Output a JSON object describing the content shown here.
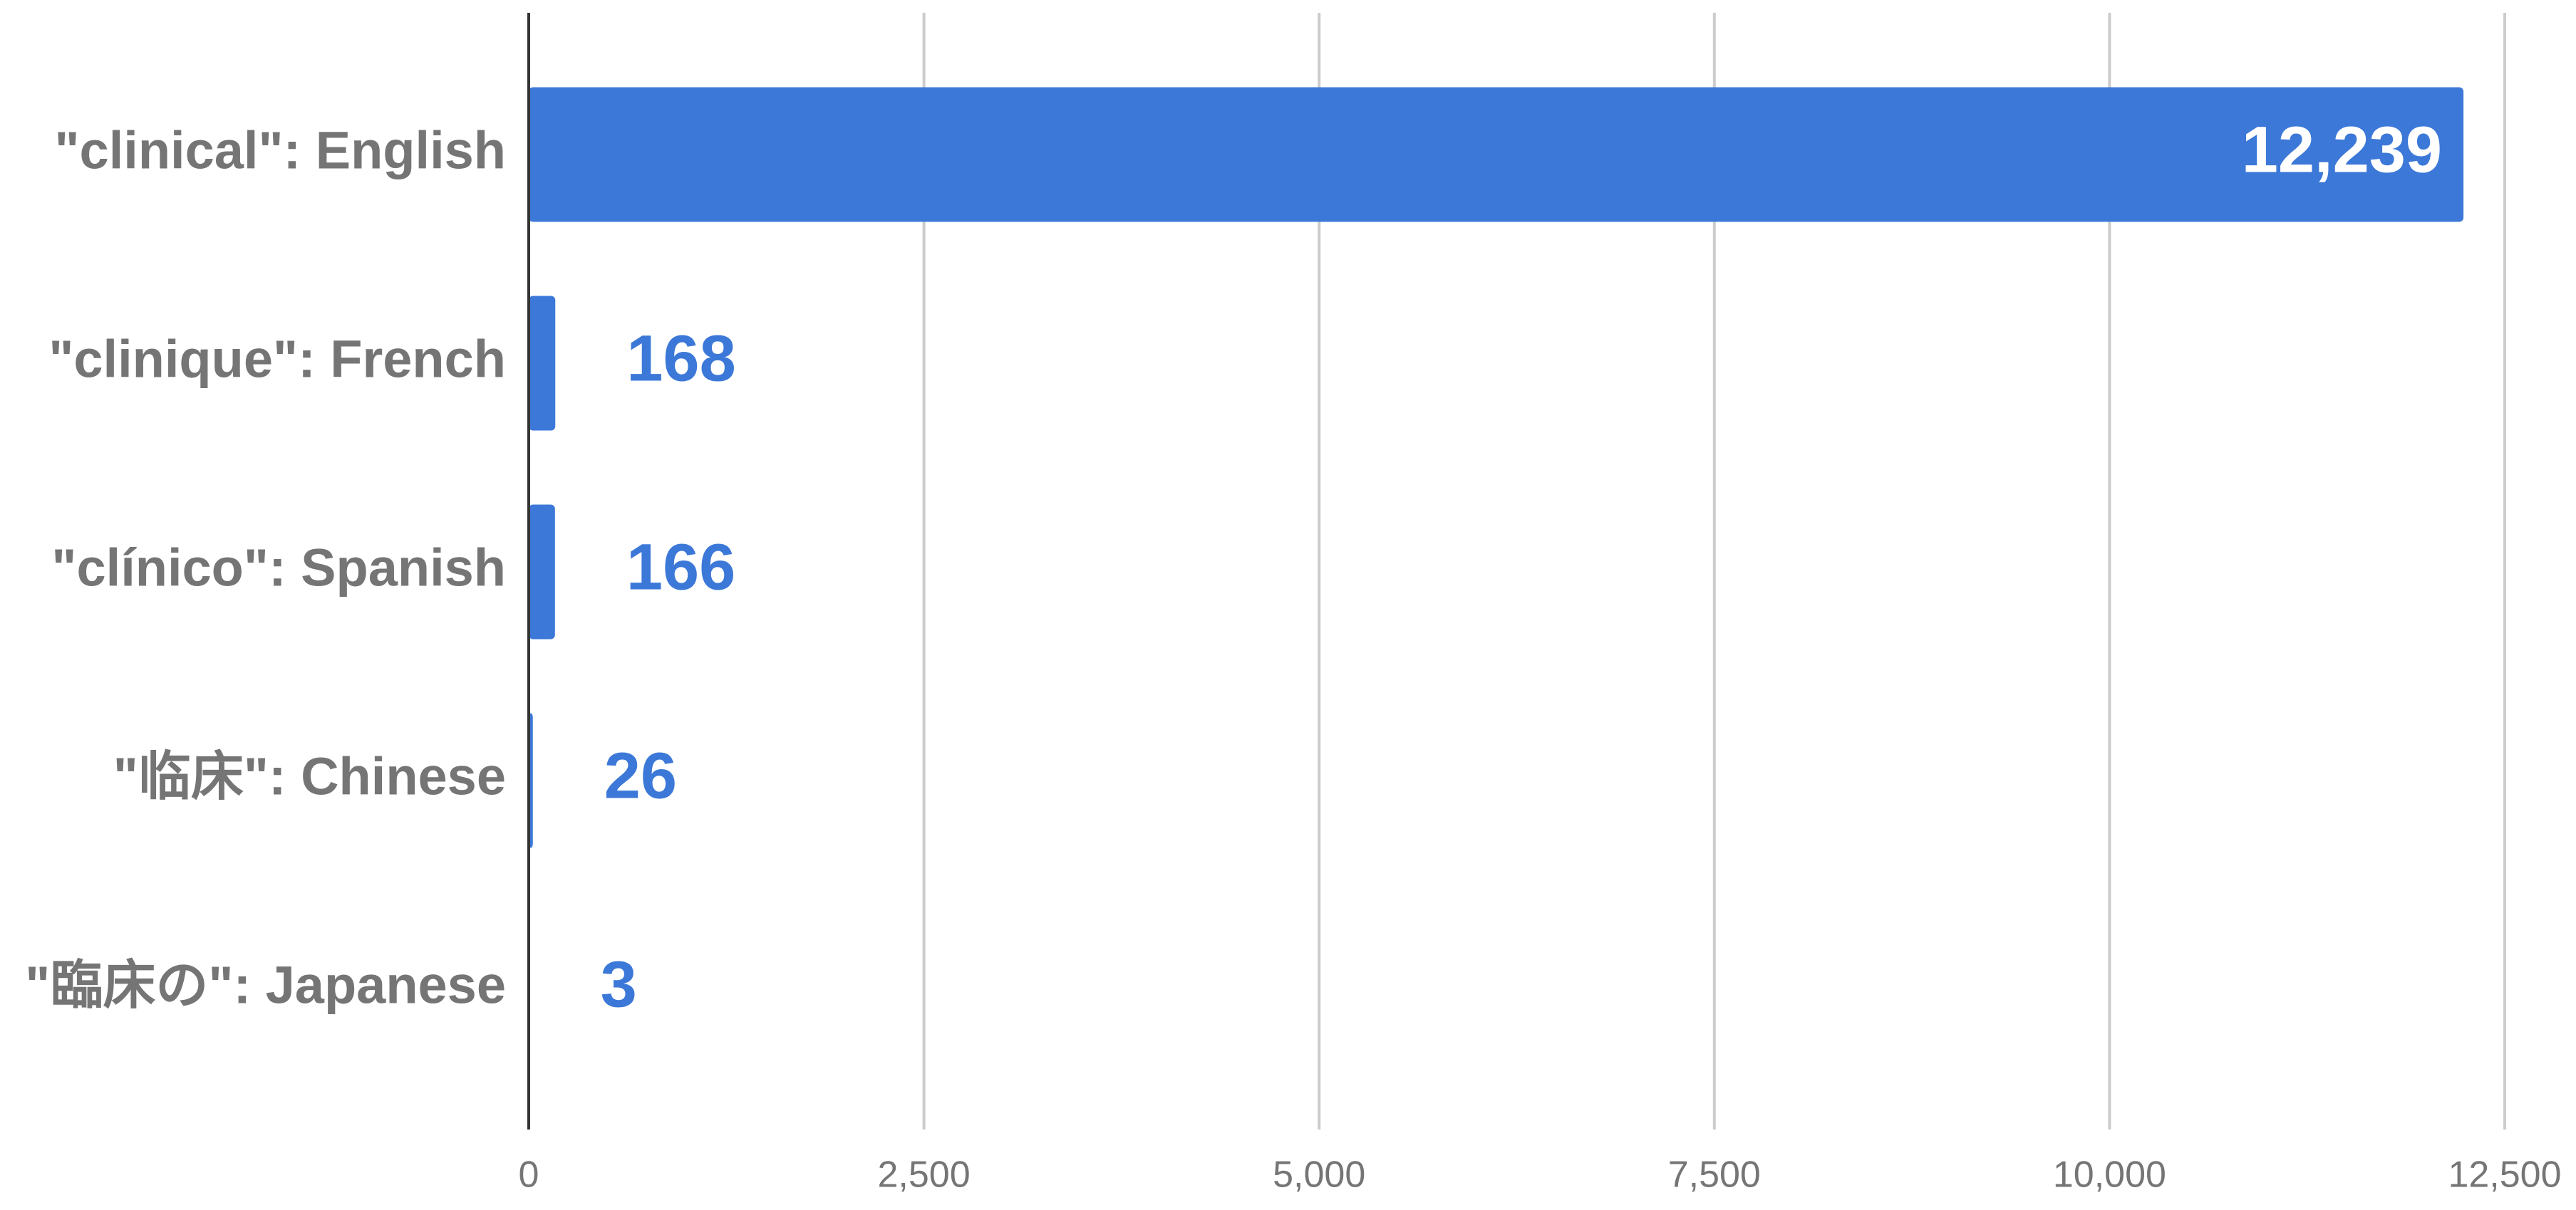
{
  "chart_data": {
    "type": "bar",
    "orientation": "horizontal",
    "categories": [
      "\"clinical\": English",
      "\"clinique\": French",
      "\"clínico\": Spanish",
      "\"临床\": Chinese",
      "\"臨床の\": Japanese"
    ],
    "values": [
      12239,
      168,
      166,
      26,
      3
    ],
    "value_labels": [
      "12,239",
      "168",
      "166",
      "26",
      "3"
    ],
    "color": "#3c78d8",
    "xlim": [
      0,
      12500
    ],
    "xticks": [
      0,
      {
        "value": 2500,
        "label": "2,500"
      },
      {
        "value": 5000,
        "label": "5,000"
      },
      {
        "value": 7500,
        "label": "7,500"
      },
      {
        "value": 10000,
        "label": "10,000"
      },
      {
        "value": 12500,
        "label": "12,500"
      }
    ],
    "grid": true
  }
}
